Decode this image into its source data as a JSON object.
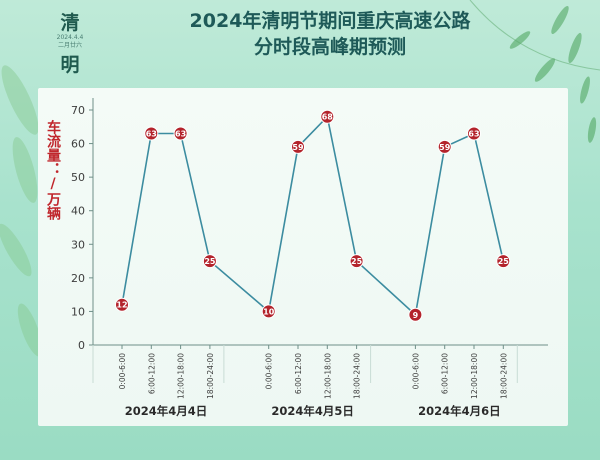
{
  "badge": {
    "char1": "清",
    "date": "2024.4.4",
    "lunar": "二月廿六",
    "char2": "明"
  },
  "title_line1": "2024年清明节期间重庆高速公路",
  "title_line2": "分时段高峰期预测",
  "colors": {
    "line": "#3c8ca0",
    "point": "#b3232b",
    "axis": "#6f8f88",
    "tick": "#3d3d3d",
    "ylabel": "#c0262c"
  },
  "chart_data": {
    "type": "line",
    "ylabel": "车流量：/万辆",
    "ylim": [
      0,
      70
    ],
    "yticks": [
      0,
      10,
      20,
      30,
      40,
      50,
      60,
      70
    ],
    "groups": [
      {
        "label": "2024年4月4日",
        "periods": [
          "0:00-6:00",
          "6:00-12:00",
          "12:00-18:00",
          "18:00-24:00"
        ],
        "values": [
          12,
          63,
          63,
          25
        ]
      },
      {
        "label": "2024年4月5日",
        "periods": [
          "0:00-6:00",
          "6:00-12:00",
          "12:00-18:00",
          "18:00-24:00"
        ],
        "values": [
          10,
          59,
          68,
          25
        ]
      },
      {
        "label": "2024年4月6日",
        "periods": [
          "0:00-6:00",
          "6:00-12:00",
          "12:00-18:00",
          "18:00-24:00"
        ],
        "values": [
          9,
          59,
          63,
          25
        ]
      }
    ]
  }
}
